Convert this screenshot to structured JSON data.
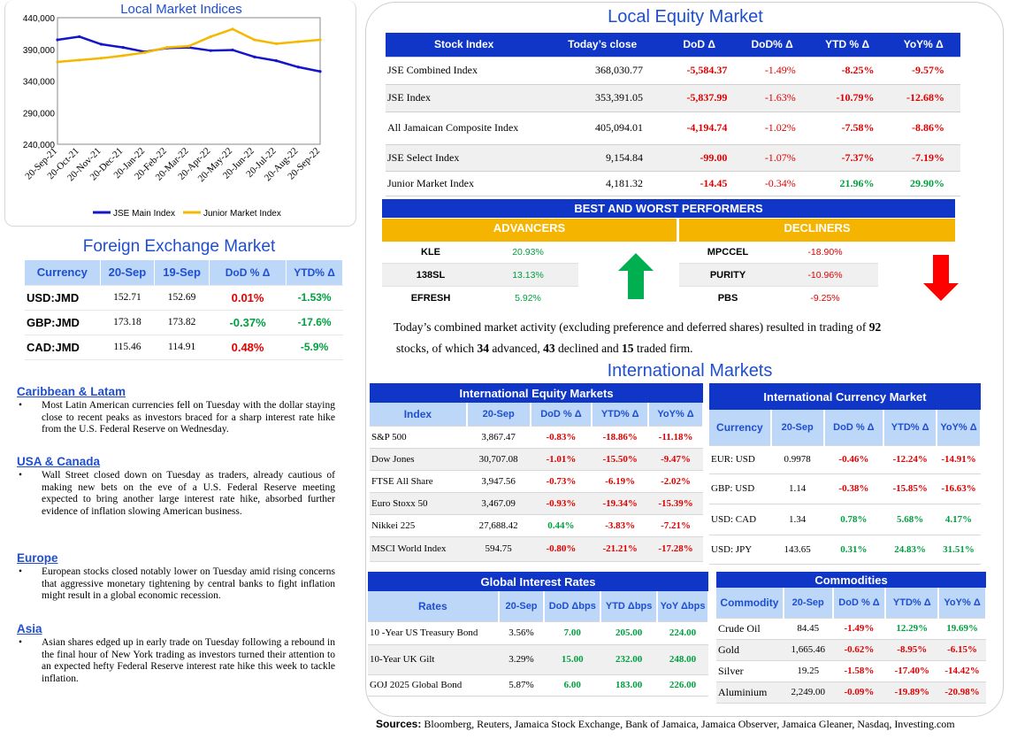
{
  "chart_data": {
    "type": "line",
    "title": "Local Market Indices",
    "x": [
      "20-Sep-21",
      "20-Oct-21",
      "20-Nov-21",
      "20-Dec-21",
      "20-Jan-22",
      "20-Feb-22",
      "20-Mar-22",
      "20-Apr-22",
      "20-May-22",
      "20-Jun-22",
      "20-Jul-22",
      "20-Aug-22",
      "20-Sep-22"
    ],
    "yticks": [
      "440,000",
      "390,000",
      "340,000",
      "290,000",
      "240,000"
    ],
    "ylim": [
      240000,
      440000
    ],
    "series": [
      {
        "name": "JSE Main Index",
        "color": "#1414c8",
        "values": [
          405000,
          410000,
          398000,
          393000,
          386000,
          392000,
          393000,
          388000,
          389000,
          378000,
          372000,
          362000,
          355000
        ]
      },
      {
        "name": "Junior Market Index",
        "color": "#f5b800",
        "values": [
          370000,
          373000,
          376000,
          380000,
          385000,
          393000,
          395000,
          410000,
          422000,
          405000,
          399000,
          402000,
          405000
        ]
      }
    ]
  },
  "fx": {
    "title": "Foreign Exchange Market",
    "headers": [
      "Currency",
      "20-Sep",
      "19-Sep",
      "DoD % Δ",
      "YTD% Δ"
    ],
    "rows": [
      {
        "cur": "USD:JMD",
        "a": "152.71",
        "b": "152.69",
        "dod": "0.01%",
        "ytd": "-1.53%",
        "dodc": "red",
        "ytdc": "green"
      },
      {
        "cur": "GBP:JMD",
        "a": "173.18",
        "b": "173.82",
        "dod": "-0.37%",
        "ytd": "-17.6%",
        "dodc": "green",
        "ytdc": "green"
      },
      {
        "cur": "CAD:JMD",
        "a": "115.46",
        "b": "114.91",
        "dod": "0.48%",
        "ytd": "-5.9%",
        "dodc": "red",
        "ytdc": "green"
      }
    ]
  },
  "news": [
    {
      "head": "Caribbean & Latam",
      "text": "Most Latin American currencies fell on Tuesday with the dollar staying close to recent peaks as investors braced for a sharp interest rate hike from the U.S. Federal Reserve on Wednesday."
    },
    {
      "head": "USA & Canada",
      "text": "Wall Street closed down on Tuesday as traders, already cautious of making new bets on the eve of a U.S. Federal Reserve meeting expected to bring another large interest rate hike, absorbed further evidence of inflation slowing American business."
    },
    {
      "head": "Europe",
      "text": "European stocks closed notably lower on Tuesday amid rising concerns that aggressive monetary tightening by central banks to fight inflation might result in a global economic recession."
    },
    {
      "head": "Asia",
      "text": "Asian shares edged up in early trade on Tuesday following a rebound in the final hour of New York trading as investors turned their attention to an expected hefty Federal Reserve interest rate hike this week to tackle inflation."
    }
  ],
  "equity": {
    "title": "Local Equity Market",
    "headers": [
      "Stock Index",
      "Today’s close",
      "DoD Δ",
      "DoD% Δ",
      "YTD % Δ",
      "YoY% Δ"
    ],
    "rows": [
      {
        "name": "JSE Combined Index",
        "close": "368,030.77",
        "dod": "-5,584.37",
        "dodp": "-1.49%",
        "ytd": "-8.25%",
        "yoy": "-9.57%",
        "ytdc": "red",
        "yoyc": "red"
      },
      {
        "name": "JSE Index",
        "close": "353,391.05",
        "dod": "-5,837.99",
        "dodp": "-1.63%",
        "ytd": "-10.79%",
        "yoy": "-12.68%",
        "ytdc": "red",
        "yoyc": "red"
      },
      {
        "name": "All Jamaican Composite Index",
        "close": "405,094.01",
        "dod": "-4,194.74",
        "dodp": "-1.02%",
        "ytd": "-7.58%",
        "yoy": "-8.86%",
        "ytdc": "red",
        "yoyc": "red"
      },
      {
        "name": "JSE Select Index",
        "close": "9,154.84",
        "dod": "-99.00",
        "dodp": "-1.07%",
        "ytd": "-7.37%",
        "yoy": "-7.19%",
        "ytdc": "red",
        "yoyc": "red"
      },
      {
        "name": "Junior Market Index",
        "close": "4,181.32",
        "dod": "-14.45",
        "dodp": "-0.34%",
        "ytd": "21.96%",
        "yoy": "29.90%",
        "ytdc": "green",
        "yoyc": "green"
      }
    ]
  },
  "performers": {
    "title": "BEST AND WORST PERFORMERS",
    "adv_label": "ADVANCERS",
    "dec_label": "DECLINERS",
    "advancers": [
      {
        "s": "KLE",
        "v": "20.93%"
      },
      {
        "s": "138SL",
        "v": "13.13%"
      },
      {
        "s": "EFRESH",
        "v": "5.92%"
      }
    ],
    "decliners": [
      {
        "s": "MPCCEL",
        "v": "-18.90%"
      },
      {
        "s": "PURITY",
        "v": "-10.96%"
      },
      {
        "s": "PBS",
        "v": "-9.25%"
      }
    ]
  },
  "summary": {
    "p1": "Today’s combined market activity (excluding preference and deferred shares) resulted in trading of ",
    "n1": "92",
    "p2": "stocks, of which ",
    "n2": "34",
    "p3": " advanced, ",
    "n3": "43",
    "p4": " declined and ",
    "n4": "15",
    "p5": " traded firm."
  },
  "intl_title": "International Markets",
  "intl_equity": {
    "title": "International Equity Markets",
    "headers": [
      "Index",
      "20-Sep",
      "DoD % Δ",
      "YTD% Δ",
      "YoY% Δ"
    ],
    "rows": [
      {
        "n": "S&P 500",
        "v": "3,867.47",
        "d": "-0.83%",
        "y": "-18.86%",
        "yy": "-11.18%",
        "dc": "red"
      },
      {
        "n": "Dow Jones",
        "v": "30,707.08",
        "d": "-1.01%",
        "y": "-15.50%",
        "yy": "-9.47%",
        "dc": "red"
      },
      {
        "n": "FTSE All Share",
        "v": "3,947.56",
        "d": "-0.73%",
        "y": "-6.19%",
        "yy": "-2.02%",
        "dc": "red"
      },
      {
        "n": "Euro Stoxx 50",
        "v": "3,467.09",
        "d": "-0.93%",
        "y": "-19.34%",
        "yy": "-15.39%",
        "dc": "red"
      },
      {
        "n": "Nikkei 225",
        "v": "27,688.42",
        "d": "0.44%",
        "y": "-3.83%",
        "yy": "-7.21%",
        "dc": "green"
      },
      {
        "n": "MSCI World Index",
        "v": "594.75",
        "d": "-0.80%",
        "y": "-21.21%",
        "yy": "-17.28%",
        "dc": "red"
      }
    ]
  },
  "intl_currency": {
    "title": "International Currency Market",
    "headers": [
      "Currency",
      "20-Sep",
      "DoD % Δ",
      "YTD% Δ",
      "YoY% Δ"
    ],
    "rows": [
      {
        "n": "EUR: USD",
        "v": "0.9978",
        "d": "-0.46%",
        "y": "-12.24%",
        "yy": "-14.91%",
        "dc": "red",
        "yc": "red",
        "yyc": "red"
      },
      {
        "n": "GBP: USD",
        "v": "1.14",
        "d": "-0.38%",
        "y": "-15.85%",
        "yy": "-16.63%",
        "dc": "red",
        "yc": "red",
        "yyc": "red"
      },
      {
        "n": "USD: CAD",
        "v": "1.34",
        "d": "0.78%",
        "y": "5.68%",
        "yy": "4.17%",
        "dc": "green",
        "yc": "green",
        "yyc": "green"
      },
      {
        "n": "USD: JPY",
        "v": "143.65",
        "d": "0.31%",
        "y": "24.83%",
        "yy": "31.51%",
        "dc": "green",
        "yc": "green",
        "yyc": "green"
      }
    ]
  },
  "rates": {
    "title": "Global Interest Rates",
    "headers": [
      "Rates",
      "20-Sep",
      "DoD Δbps",
      "YTD Δbps",
      "YoY Δbps"
    ],
    "rows": [
      {
        "n": "10 -Year US Treasury Bond",
        "v": "3.56%",
        "d": "7.00",
        "y": "205.00",
        "yy": "224.00"
      },
      {
        "n": "10-Year UK Gilt",
        "v": "3.29%",
        "d": "15.00",
        "y": "232.00",
        "yy": "248.00"
      },
      {
        "n": "GOJ 2025 Global Bond",
        "v": "5.87%",
        "d": "6.00",
        "y": "183.00",
        "yy": "226.00"
      }
    ]
  },
  "commodities": {
    "title": "Commodities",
    "headers": [
      "Commodity",
      "20-Sep",
      "DoD % Δ",
      "YTD% Δ",
      "YoY% Δ"
    ],
    "rows": [
      {
        "n": "Crude Oil",
        "v": "84.45",
        "d": "-1.49%",
        "y": "12.29%",
        "yy": "19.69%",
        "dc": "red",
        "yc": "green",
        "yyc": "green"
      },
      {
        "n": "Gold",
        "v": "1,665.46",
        "d": "-0.62%",
        "y": "-8.95%",
        "yy": "-6.15%",
        "dc": "red",
        "yc": "red",
        "yyc": "red"
      },
      {
        "n": "Silver",
        "v": "19.25",
        "d": "-1.58%",
        "y": "-17.40%",
        "yy": "-14.42%",
        "dc": "red",
        "yc": "red",
        "yyc": "red"
      },
      {
        "n": "Aluminium",
        "v": "2,249.00",
        "d": "-0.09%",
        "y": "-19.89%",
        "yy": "-20.98%",
        "dc": "red",
        "yc": "red",
        "yyc": "red"
      }
    ]
  },
  "sources": {
    "label": "Sources:",
    "text": " Bloomberg, Reuters, Jamaica Stock Exchange, Bank of Jamaica, Jamaica Observer, Jamaica Gleaner, Nasdaq, Investing.com"
  }
}
